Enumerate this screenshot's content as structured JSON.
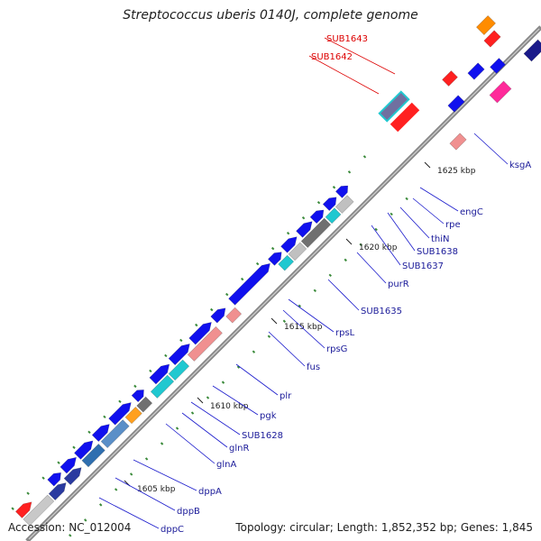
{
  "title": "Streptococcus uberis 0140J, complete genome",
  "footer": {
    "accession_label": "Accession:",
    "accession": "NC_012004",
    "topology_label": "Topology:",
    "topology": "circular",
    "length_label": "Length:",
    "length": "1,852,352 bp",
    "genes_label": "Genes:",
    "genes": "1,845"
  },
  "colors": {
    "backbone": "#8a8a8a",
    "label_line": "#1a1acc",
    "label_text": "#1a1a99",
    "highlight_label": "#dd0000",
    "tick": "#3a8a3a"
  },
  "ticks": [
    "1605 kbp",
    "1610 kbp",
    "1615 kbp",
    "1620 kbp",
    "1625 kbp"
  ],
  "gene_labels": [
    "SUB1643",
    "SUB1642",
    "ksgA",
    "engC",
    "rpe",
    "thiN",
    "SUB1638",
    "SUB1637",
    "purR",
    "SUB1635",
    "rpsL",
    "rpsG",
    "fus",
    "plr",
    "pgk",
    "SUB1628",
    "glnR",
    "glnA",
    "dppA",
    "dppB",
    "dppC"
  ]
}
